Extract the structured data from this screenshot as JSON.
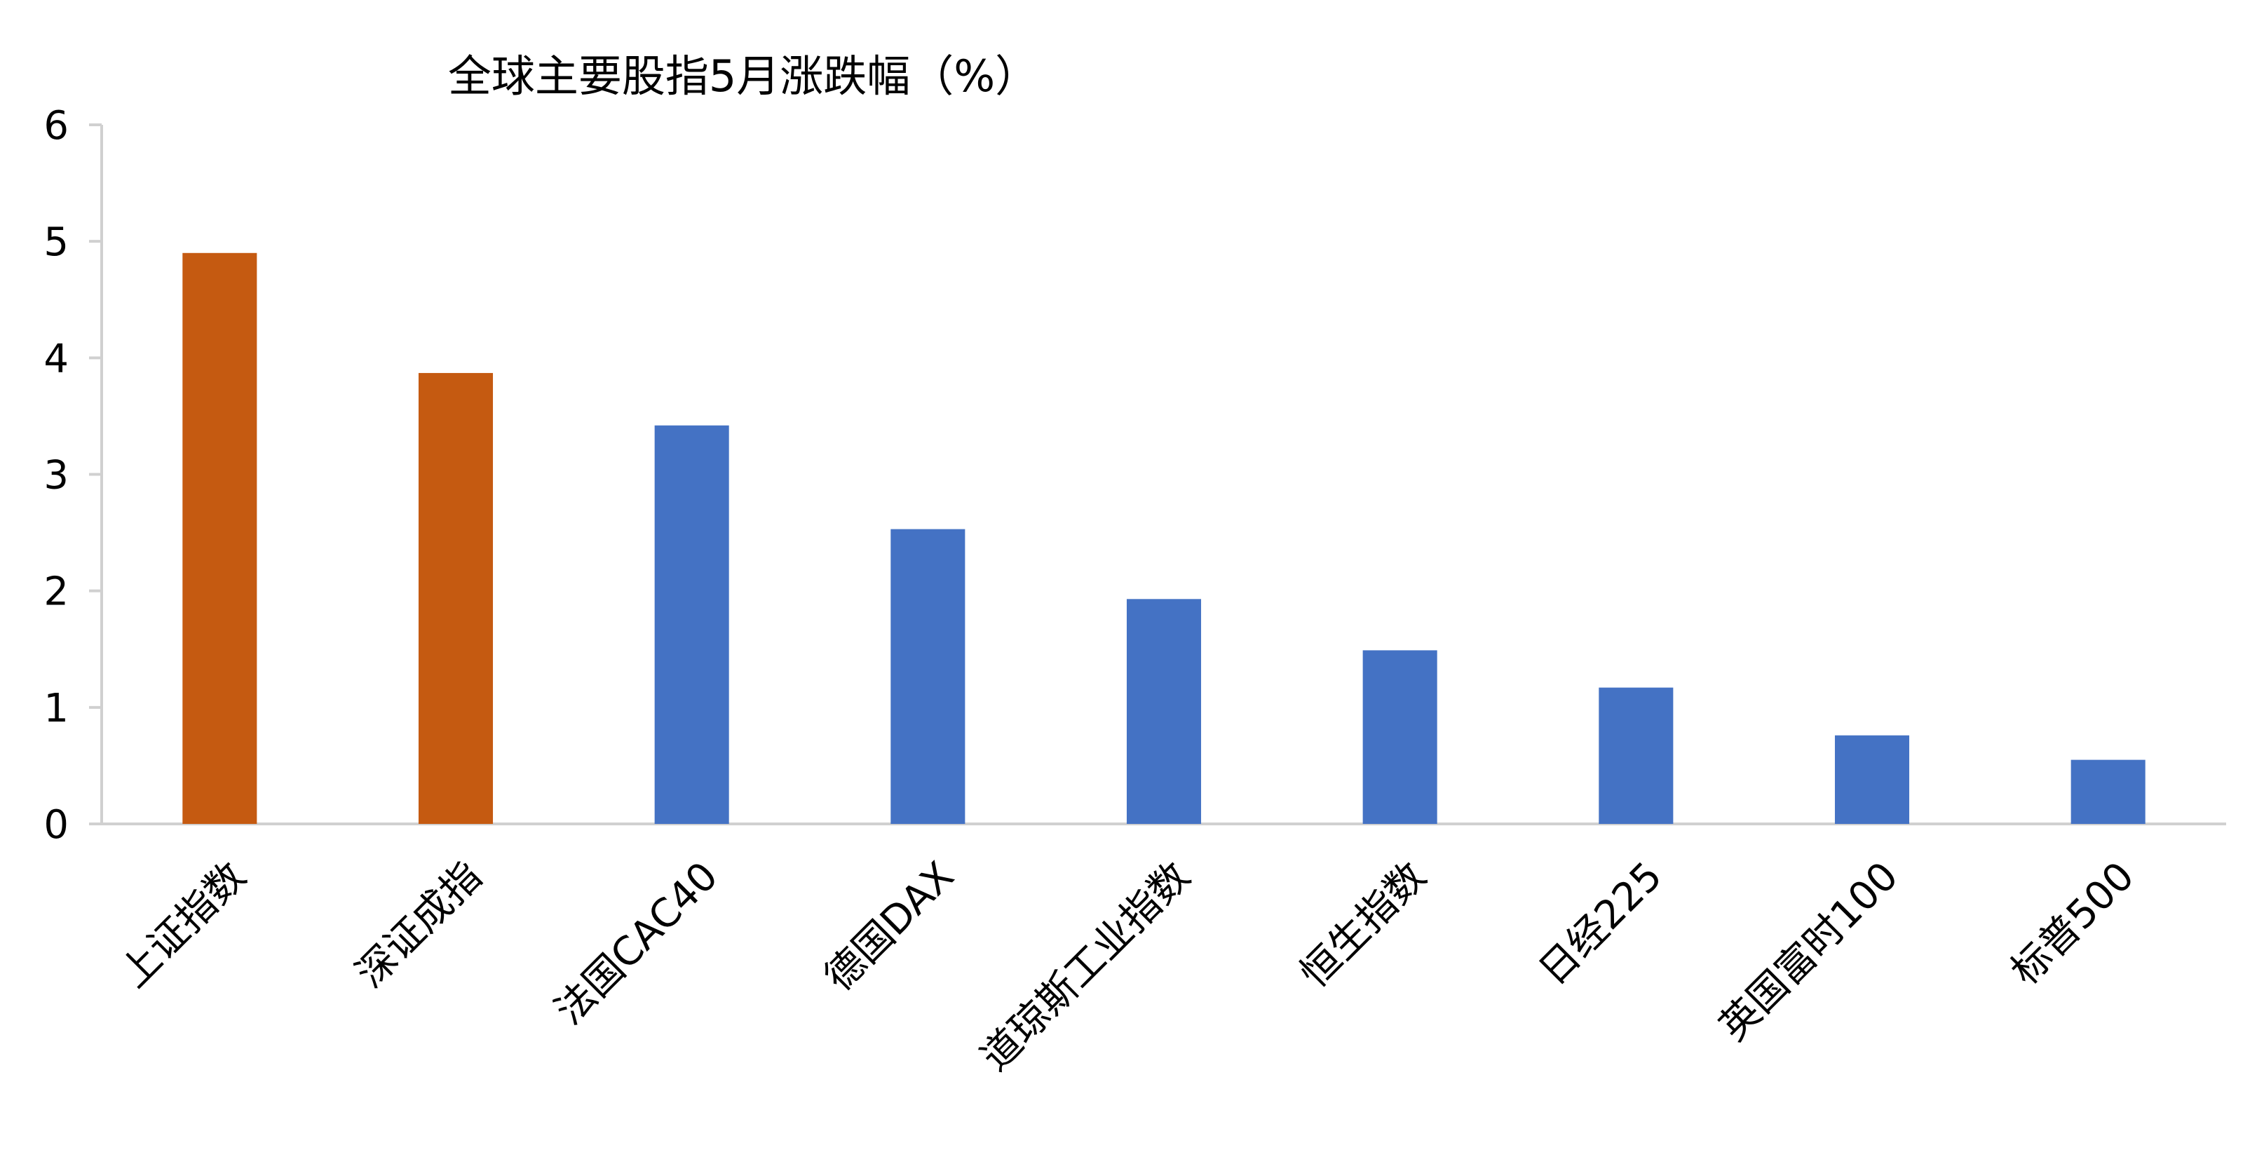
{
  "chart_data": {
    "type": "bar",
    "title": "全球主要股指5月涨跌幅（%）",
    "xlabel": "",
    "ylabel": "",
    "ylim": [
      0,
      6
    ],
    "yticks": [
      0,
      1,
      2,
      3,
      4,
      5,
      6
    ],
    "grid": false,
    "legend": "none",
    "categories": [
      "上证指数",
      "深证成指",
      "法国CAC40",
      "德国DAX",
      "道琼斯工业指数",
      "恒生指数",
      "日经225",
      "英国富时100",
      "标普500"
    ],
    "values": [
      4.9,
      3.87,
      3.42,
      2.53,
      1.93,
      1.49,
      1.17,
      0.76,
      0.55
    ],
    "colors": {
      "china": "#C55A11",
      "overseas": "#4472C4"
    },
    "bar_color_groups": [
      "china",
      "china",
      "overseas",
      "overseas",
      "overseas",
      "overseas",
      "overseas",
      "overseas",
      "overseas"
    ]
  }
}
